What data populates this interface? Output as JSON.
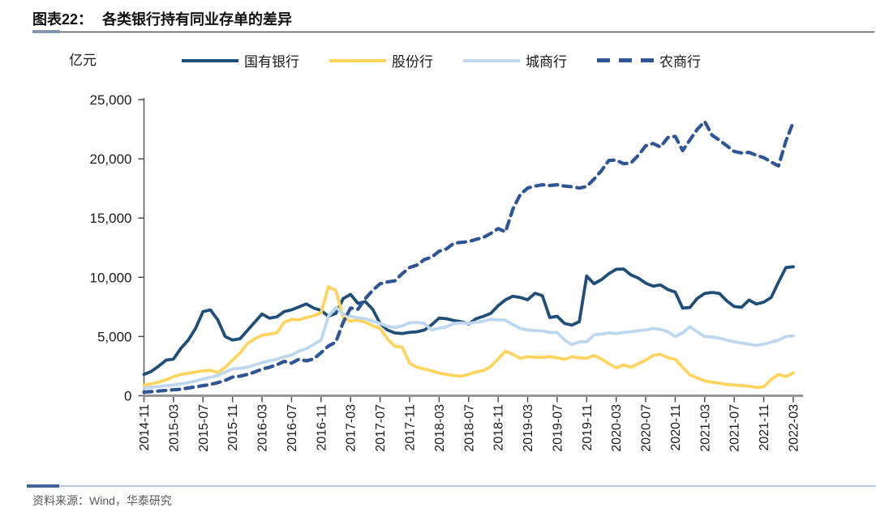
{
  "figure": {
    "title_prefix": "图表22：",
    "title_text": "各类银行持有同业存单的差异",
    "unit_label": "亿元",
    "source_text": "资料来源：Wind，华泰研究"
  },
  "colors": {
    "state_bank": "#1F4E79",
    "joint_stock": "#FFD45E",
    "city_bank": "#BDD7EE",
    "rural_bank": "#2F5597",
    "title_accent": "#8496B0",
    "footer_line_light": "#B4C6DC",
    "footer_line_dark": "#41639C",
    "axis_line": "#969696",
    "tick_mark": "#4d4d4d",
    "tick_text": "#1a1a1a"
  },
  "chart_data": {
    "type": "line",
    "title": "各类银行持有同业存单的差异",
    "ylabel": "亿元",
    "ylim": [
      0,
      25000
    ],
    "y_ticks": [
      0,
      5000,
      10000,
      15000,
      20000,
      25000
    ],
    "x_frequency": "monthly",
    "x_range": [
      "2014-11",
      "2022-03"
    ],
    "x_tick_every_n_months": 4,
    "x_tick_labels": [
      "2014-11",
      "2015-03",
      "2015-07",
      "2015-11",
      "2016-03",
      "2016-07",
      "2016-11",
      "2017-03",
      "2017-07",
      "2017-11",
      "2018-03",
      "2018-07",
      "2018-11",
      "2019-03",
      "2019-07",
      "2019-11",
      "2020-03",
      "2020-07",
      "2020-11",
      "2021-03",
      "2021-07",
      "2021-11",
      "2022-03"
    ],
    "legend_position": "top",
    "grid": false,
    "series": [
      {
        "name": "国有银行",
        "color": "#1F4E79",
        "style": "solid",
        "values": [
          1800,
          2050,
          2500,
          3000,
          3100,
          4000,
          4700,
          5700,
          7100,
          7250,
          6400,
          5000,
          4700,
          4800,
          5500,
          6200,
          6900,
          6550,
          6650,
          7100,
          7250,
          7500,
          7750,
          7400,
          7200,
          6700,
          6950,
          8200,
          8560,
          7800,
          7950,
          7300,
          6100,
          5550,
          5300,
          5250,
          5350,
          5400,
          5550,
          6000,
          6550,
          6500,
          6350,
          6250,
          6050,
          6500,
          6700,
          6950,
          7600,
          8100,
          8400,
          8300,
          8100,
          8650,
          8450,
          6600,
          6700,
          6100,
          5960,
          6250,
          10100,
          9450,
          9800,
          10300,
          10680,
          10700,
          10200,
          9930,
          9500,
          9250,
          9350,
          8970,
          8750,
          7400,
          7450,
          8220,
          8630,
          8720,
          8630,
          8000,
          7530,
          7470,
          8080,
          7740,
          7900,
          8290,
          9590,
          10820,
          10890
        ]
      },
      {
        "name": "股份行",
        "color": "#FFD45E",
        "style": "solid",
        "values": [
          900,
          1000,
          1150,
          1350,
          1600,
          1800,
          1900,
          2000,
          2100,
          2150,
          1950,
          2400,
          3000,
          3600,
          4400,
          4800,
          5100,
          5200,
          5300,
          6200,
          6450,
          6400,
          6600,
          6750,
          7000,
          9200,
          8900,
          6600,
          6300,
          6400,
          6200,
          5900,
          5680,
          4800,
          4180,
          4100,
          2740,
          2400,
          2260,
          2100,
          1900,
          1800,
          1700,
          1650,
          1800,
          2000,
          2120,
          2470,
          3100,
          3770,
          3490,
          3150,
          3300,
          3250,
          3220,
          3300,
          3200,
          3080,
          3290,
          3200,
          3150,
          3400,
          3100,
          2700,
          2350,
          2600,
          2400,
          2700,
          3000,
          3400,
          3500,
          3200,
          3080,
          2400,
          1750,
          1500,
          1250,
          1150,
          1050,
          950,
          900,
          850,
          800,
          700,
          750,
          1370,
          1800,
          1600,
          1950
        ]
      },
      {
        "name": "城商行",
        "color": "#BDD7EE",
        "style": "solid",
        "values": [
          650,
          700,
          780,
          850,
          900,
          1000,
          1100,
          1250,
          1400,
          1550,
          1700,
          2000,
          2260,
          2320,
          2400,
          2600,
          2800,
          2950,
          3080,
          3290,
          3425,
          3770,
          3970,
          4315,
          4700,
          6700,
          7450,
          6920,
          6710,
          6575,
          6500,
          6300,
          6100,
          5850,
          5750,
          5900,
          6160,
          6200,
          6100,
          5550,
          5700,
          5820,
          6100,
          6150,
          6100,
          6200,
          6300,
          6450,
          6400,
          6370,
          6000,
          5680,
          5550,
          5500,
          5480,
          5340,
          5340,
          4700,
          4315,
          4550,
          4550,
          5140,
          5200,
          5300,
          5250,
          5340,
          5400,
          5500,
          5550,
          5680,
          5600,
          5400,
          5000,
          5300,
          5820,
          5400,
          5000,
          4950,
          4860,
          4700,
          4550,
          4450,
          4350,
          4250,
          4350,
          4520,
          4700,
          5000,
          5050
        ]
      },
      {
        "name": "农商行",
        "color": "#2F5597",
        "style": "dashed",
        "values": [
          300,
          350,
          400,
          450,
          500,
          550,
          650,
          750,
          850,
          950,
          1100,
          1300,
          1575,
          1650,
          1800,
          2000,
          2250,
          2400,
          2600,
          2900,
          2750,
          3080,
          2950,
          3100,
          3630,
          4200,
          4520,
          6200,
          7400,
          7300,
          8200,
          8900,
          9450,
          9600,
          9700,
          10300,
          10820,
          11030,
          11500,
          11700,
          12200,
          12400,
          12880,
          12950,
          13010,
          13200,
          13360,
          13700,
          14110,
          13840,
          15750,
          16990,
          17530,
          17700,
          17810,
          17750,
          17810,
          17700,
          17650,
          17530,
          17670,
          18300,
          19000,
          19860,
          19900,
          19590,
          19650,
          20300,
          21100,
          21300,
          21000,
          21800,
          21900,
          20700,
          21600,
          22500,
          23150,
          22000,
          21575,
          21100,
          20620,
          20500,
          20550,
          20300,
          20100,
          19730,
          19400,
          21500,
          23100
        ]
      }
    ]
  }
}
